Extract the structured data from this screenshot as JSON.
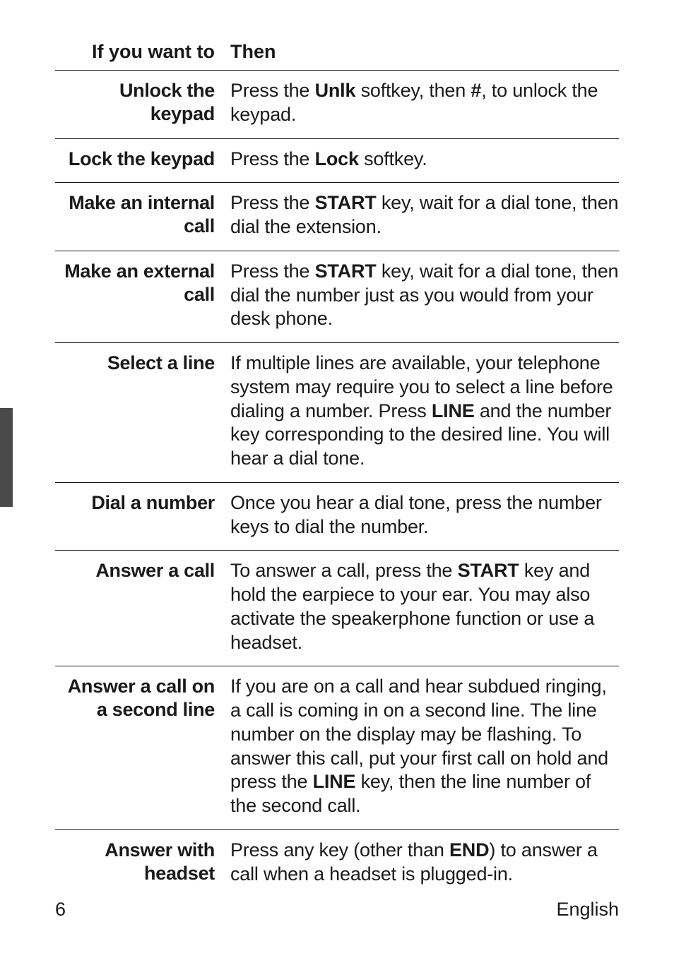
{
  "header": {
    "left": "If you want to",
    "right": "Then"
  },
  "rows": [
    {
      "label": "Unlock the keypad",
      "desc": "Press the <b>Unlk</b> softkey, then <b>#</b>, to unlock the keypad."
    },
    {
      "label": "Lock the keypad",
      "desc": "Press the <b>Lock</b> softkey."
    },
    {
      "label": "Make an internal call",
      "desc": "Press the <b>START</b> key, wait for a dial tone, then dial the extension."
    },
    {
      "label": "Make an external call",
      "desc": "Press the <b>START</b> key, wait for a dial tone, then dial the number just as you would from your desk phone."
    },
    {
      "label": "Select a line",
      "desc": "If multiple lines are available, your telephone system may require you to select a line before dialing a number. Press <b>LINE</b> and the number key corresponding to the desired line. You will hear a dial tone."
    },
    {
      "label": "Dial a number",
      "desc": "Once you hear a dial tone, press the number keys to dial the number."
    },
    {
      "label": "Answer a call",
      "desc": "To answer a call, press the <b>START</b> key and hold the earpiece to your ear. You may also activate the speakerphone function or use a headset."
    },
    {
      "label": "Answer a call on a second line",
      "desc": "If you are on a call and hear subdued ringing, a call is coming in on a second line. The line number on the display may be flashing. To answer this call, put your first call on hold and press the <b>LINE</b> key, then the line number of the second call."
    },
    {
      "label": "Answer with headset",
      "desc": "Press any key (other than <b>END</b>) to answer a call when a headset is plugged-in."
    }
  ],
  "footer": {
    "page": "6",
    "lang": "English"
  }
}
